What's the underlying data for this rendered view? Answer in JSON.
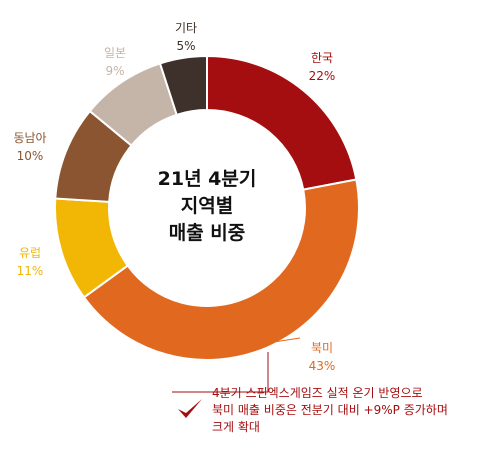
{
  "chart_data": {
    "type": "pie",
    "variant": "donut",
    "title": [
      "21년 4분기",
      "지역별",
      "매출 비중"
    ],
    "slices": [
      {
        "label": "한국",
        "value": 22,
        "value_text": "22%",
        "color": "#a50e10"
      },
      {
        "label": "북미",
        "value": 43,
        "value_text": "43%",
        "color": "#e0691f"
      },
      {
        "label": "유럽",
        "value": 11,
        "value_text": "11%",
        "color": "#f2b705"
      },
      {
        "label": "동남아",
        "value": 10,
        "value_text": "10%",
        "color": "#8a5530"
      },
      {
        "label": "일본",
        "value": 9,
        "value_text": "9%",
        "color": "#c5b4a8"
      },
      {
        "label": "기타",
        "value": 5,
        "value_text": "5%",
        "color": "#3e302a"
      }
    ],
    "label_colors": {
      "한국": "#a50e10",
      "북미": "#e0691f",
      "유럽": "#f2b705",
      "동남아": "#8a5530",
      "일본": "#c5b4a8",
      "기타": "#3e302a"
    },
    "annotation": [
      "4분기 스핀엑스게임즈 실적 온기 반영으로",
      "북미 매출 비중은 전분기 대비  +9%P 증가하며",
      "크게 확대"
    ],
    "annotation_color": "#a50e10",
    "check_icon": "check-mark-icon"
  }
}
